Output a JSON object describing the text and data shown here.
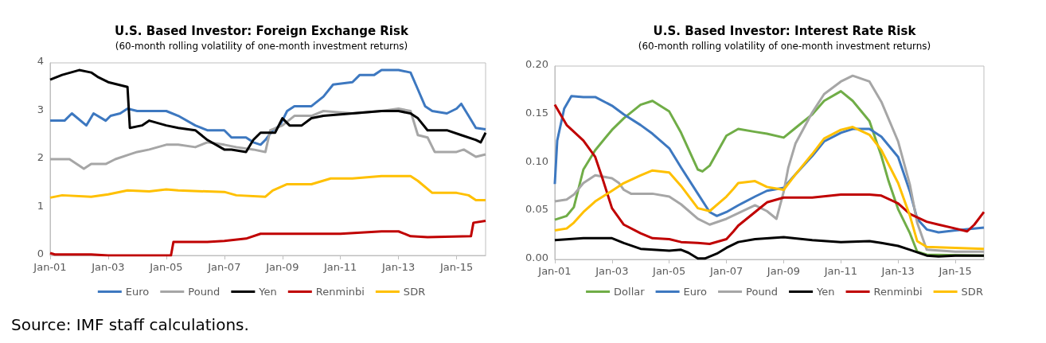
{
  "chart_data": [
    {
      "type": "line",
      "title": "U.S. Based Investor: Foreign Exchange Risk",
      "subtitle": "(60-month rolling volatility of one-month investment returns)",
      "xlim": [
        "2001-01",
        "2016-01"
      ],
      "xticks": [
        {
          "value": "2001-01",
          "label": "Jan-01"
        },
        {
          "value": "2003-01",
          "label": "Jan-03"
        },
        {
          "value": "2005-01",
          "label": "Jan-05"
        },
        {
          "value": "2007-01",
          "label": "Jan-07"
        },
        {
          "value": "2009-01",
          "label": "Jan-09"
        },
        {
          "value": "2011-01",
          "label": "Jan-11"
        },
        {
          "value": "2013-01",
          "label": "Jan-13"
        },
        {
          "value": "2015-01",
          "label": "Jan-15"
        }
      ],
      "ylim": [
        0,
        4
      ],
      "yticks": [
        0,
        1,
        2,
        3,
        4
      ],
      "grid": false,
      "legend": "bottom",
      "marker": "none",
      "annotations": [
        "Source: IMF staff calculations."
      ],
      "series": [
        {
          "name": "Euro",
          "color": "#3d78c0",
          "x": [
            "2001-01",
            "2001-07",
            "2001-10",
            "2002-04",
            "2002-07",
            "2002-12",
            "2003-02",
            "2003-06",
            "2003-09",
            "2004-01",
            "2005-01",
            "2005-06",
            "2006-01",
            "2006-06",
            "2007-01",
            "2007-04",
            "2007-10",
            "2008-01",
            "2008-04",
            "2008-06",
            "2008-09",
            "2008-12",
            "2009-03",
            "2009-06",
            "2010-01",
            "2010-06",
            "2010-10",
            "2011-06",
            "2011-09",
            "2012-03",
            "2012-06",
            "2013-01",
            "2013-06",
            "2013-09",
            "2013-12",
            "2014-03",
            "2014-09",
            "2015-01",
            "2015-03",
            "2015-06",
            "2015-09",
            "2016-01"
          ],
          "values": [
            2.8,
            2.8,
            2.95,
            2.7,
            2.95,
            2.8,
            2.9,
            2.95,
            3.05,
            3.0,
            3.0,
            2.9,
            2.7,
            2.6,
            2.6,
            2.45,
            2.45,
            2.35,
            2.3,
            2.4,
            2.6,
            2.7,
            3.0,
            3.1,
            3.1,
            3.3,
            3.55,
            3.6,
            3.75,
            3.75,
            3.85,
            3.85,
            3.8,
            3.45,
            3.1,
            3.0,
            2.95,
            3.05,
            3.15,
            2.9,
            2.65,
            2.62
          ]
        },
        {
          "name": "Pound",
          "color": "#a6a6a6",
          "x": [
            "2001-01",
            "2001-09",
            "2002-03",
            "2002-06",
            "2002-12",
            "2003-04",
            "2003-10",
            "2004-01",
            "2004-06",
            "2005-01",
            "2005-06",
            "2006-01",
            "2006-06",
            "2007-01",
            "2007-06",
            "2008-01",
            "2008-06",
            "2008-08",
            "2009-01",
            "2009-06",
            "2010-01",
            "2010-06",
            "2011-06",
            "2012-06",
            "2013-01",
            "2013-06",
            "2013-09",
            "2014-01",
            "2014-04",
            "2015-01",
            "2015-04",
            "2015-09",
            "2016-01"
          ],
          "values": [
            2.0,
            2.0,
            1.8,
            1.9,
            1.9,
            2.0,
            2.1,
            2.15,
            2.2,
            2.3,
            2.3,
            2.25,
            2.35,
            2.3,
            2.25,
            2.2,
            2.15,
            2.6,
            2.7,
            2.9,
            2.9,
            3.0,
            2.95,
            3.0,
            3.05,
            3.0,
            2.5,
            2.45,
            2.15,
            2.15,
            2.2,
            2.05,
            2.1
          ]
        },
        {
          "name": "Yen",
          "color": "#000000",
          "x": [
            "2001-01",
            "2001-06",
            "2002-01",
            "2002-06",
            "2002-09",
            "2003-01",
            "2003-09",
            "2003-10",
            "2004-03",
            "2004-06",
            "2005-01",
            "2005-06",
            "2006-01",
            "2006-06",
            "2007-01",
            "2007-04",
            "2007-10",
            "2008-01",
            "2008-04",
            "2008-10",
            "2009-01",
            "2009-04",
            "2009-09",
            "2010-01",
            "2010-06",
            "2011-06",
            "2012-06",
            "2013-01",
            "2013-06",
            "2013-09",
            "2014-01",
            "2014-09",
            "2015-03",
            "2015-09",
            "2015-11",
            "2016-01"
          ],
          "values": [
            3.65,
            3.75,
            3.85,
            3.8,
            3.7,
            3.6,
            3.5,
            2.65,
            2.7,
            2.8,
            2.7,
            2.65,
            2.6,
            2.4,
            2.2,
            2.2,
            2.15,
            2.4,
            2.55,
            2.55,
            2.85,
            2.7,
            2.7,
            2.85,
            2.9,
            2.95,
            3.0,
            3.0,
            2.95,
            2.85,
            2.6,
            2.6,
            2.5,
            2.4,
            2.35,
            2.55
          ]
        },
        {
          "name": "Renminbi",
          "color": "#c00000",
          "x": [
            "2001-01",
            "2001-03",
            "2002-06",
            "2003-01",
            "2005-03",
            "2005-04",
            "2006-06",
            "2007-01",
            "2007-10",
            "2008-04",
            "2009-01",
            "2010-06",
            "2011-01",
            "2012-06",
            "2013-01",
            "2013-06",
            "2014-01",
            "2015-07",
            "2015-08",
            "2016-01"
          ],
          "values": [
            0.05,
            0.02,
            0.02,
            0.0,
            0.0,
            0.28,
            0.28,
            0.3,
            0.35,
            0.45,
            0.45,
            0.45,
            0.45,
            0.5,
            0.5,
            0.4,
            0.38,
            0.4,
            0.68,
            0.72
          ]
        },
        {
          "name": "SDR",
          "color": "#ffc000",
          "x": [
            "2001-01",
            "2001-06",
            "2002-06",
            "2003-01",
            "2003-09",
            "2004-06",
            "2005-01",
            "2005-06",
            "2006-06",
            "2007-01",
            "2007-06",
            "2008-06",
            "2008-09",
            "2009-03",
            "2010-01",
            "2010-09",
            "2011-06",
            "2012-06",
            "2013-06",
            "2013-09",
            "2014-03",
            "2015-01",
            "2015-06",
            "2015-09",
            "2016-01"
          ],
          "values": [
            1.2,
            1.25,
            1.22,
            1.27,
            1.35,
            1.33,
            1.37,
            1.35,
            1.33,
            1.32,
            1.25,
            1.22,
            1.35,
            1.48,
            1.48,
            1.6,
            1.6,
            1.65,
            1.65,
            1.55,
            1.3,
            1.3,
            1.25,
            1.15,
            1.15
          ]
        }
      ]
    },
    {
      "type": "line",
      "title": "U.S. Based Investor: Interest Rate Risk",
      "subtitle": "(60-month rolling volatility of one-month investment returns)",
      "xlim": [
        "2001-01",
        "2016-01"
      ],
      "xticks": [
        {
          "value": "2001-01",
          "label": "Jan-01"
        },
        {
          "value": "2003-01",
          "label": "Jan-03"
        },
        {
          "value": "2005-01",
          "label": "Jan-05"
        },
        {
          "value": "2007-01",
          "label": "Jan-07"
        },
        {
          "value": "2009-01",
          "label": "Jan-09"
        },
        {
          "value": "2011-01",
          "label": "Jan-11"
        },
        {
          "value": "2013-01",
          "label": "Jan-13"
        },
        {
          "value": "2015-01",
          "label": "Jan-15"
        }
      ],
      "ylim": [
        0,
        0.2
      ],
      "yticks": [
        {
          "value": 0,
          "label": "0.00"
        },
        {
          "value": 0.05,
          "label": "0.05"
        },
        {
          "value": 0.1,
          "label": "0.10"
        },
        {
          "value": 0.15,
          "label": "0.15"
        },
        {
          "value": 0.2,
          "label": "0.20"
        }
      ],
      "grid": false,
      "legend": "bottom",
      "marker": "none",
      "series": [
        {
          "name": "Dollar",
          "color": "#70ad47",
          "x": [
            "2001-01",
            "2001-06",
            "2001-09",
            "2002-01",
            "2002-06",
            "2003-01",
            "2003-06",
            "2004-01",
            "2004-06",
            "2005-01",
            "2005-06",
            "2006-01",
            "2006-03",
            "2006-06",
            "2007-01",
            "2007-06",
            "2008-01",
            "2008-06",
            "2009-01",
            "2009-06",
            "2010-01",
            "2010-06",
            "2011-01",
            "2011-06",
            "2012-01",
            "2012-06",
            "2012-09",
            "2013-01",
            "2013-06",
            "2013-09",
            "2014-01",
            "2016-01"
          ],
          "values": [
            0.041,
            0.045,
            0.054,
            0.093,
            0.113,
            0.134,
            0.146,
            0.16,
            0.164,
            0.153,
            0.131,
            0.093,
            0.091,
            0.097,
            0.128,
            0.135,
            0.132,
            0.13,
            0.126,
            0.136,
            0.15,
            0.164,
            0.174,
            0.164,
            0.143,
            0.107,
            0.081,
            0.052,
            0.027,
            0.008,
            0.005,
            0.004
          ]
        },
        {
          "name": "Euro",
          "color": "#3d78c0",
          "x": [
            "2001-01",
            "2001-02",
            "2001-05",
            "2001-08",
            "2002-01",
            "2002-06",
            "2003-01",
            "2003-06",
            "2004-01",
            "2004-06",
            "2005-01",
            "2005-06",
            "2006-01",
            "2006-06",
            "2006-09",
            "2007-01",
            "2007-06",
            "2008-01",
            "2008-06",
            "2009-01",
            "2009-06",
            "2010-01",
            "2010-06",
            "2011-01",
            "2011-06",
            "2012-01",
            "2012-06",
            "2013-01",
            "2013-06",
            "2013-09",
            "2014-01",
            "2014-06",
            "2015-01",
            "2016-01"
          ],
          "values": [
            0.078,
            0.123,
            0.156,
            0.169,
            0.168,
            0.168,
            0.159,
            0.15,
            0.139,
            0.13,
            0.115,
            0.095,
            0.068,
            0.049,
            0.045,
            0.049,
            0.056,
            0.065,
            0.071,
            0.074,
            0.088,
            0.107,
            0.122,
            0.131,
            0.135,
            0.135,
            0.127,
            0.106,
            0.07,
            0.042,
            0.031,
            0.028,
            0.03,
            0.033
          ]
        },
        {
          "name": "Pound",
          "color": "#a6a6a6",
          "x": [
            "2001-01",
            "2001-06",
            "2001-09",
            "2002-01",
            "2002-06",
            "2003-01",
            "2003-04",
            "2003-06",
            "2003-09",
            "2004-06",
            "2005-01",
            "2005-06",
            "2006-01",
            "2006-06",
            "2007-01",
            "2008-01",
            "2008-06",
            "2008-10",
            "2009-01",
            "2009-03",
            "2009-06",
            "2010-01",
            "2010-06",
            "2011-01",
            "2011-06",
            "2012-01",
            "2012-06",
            "2013-01",
            "2013-06",
            "2013-09",
            "2014-01",
            "2015-01",
            "2016-01"
          ],
          "values": [
            0.06,
            0.062,
            0.067,
            0.079,
            0.087,
            0.084,
            0.079,
            0.072,
            0.068,
            0.068,
            0.065,
            0.057,
            0.042,
            0.036,
            0.042,
            0.056,
            0.05,
            0.042,
            0.07,
            0.095,
            0.12,
            0.152,
            0.171,
            0.184,
            0.19,
            0.184,
            0.163,
            0.122,
            0.077,
            0.038,
            0.01,
            0.008,
            0.008
          ]
        },
        {
          "name": "Yen",
          "color": "#000000",
          "x": [
            "2001-01",
            "2002-01",
            "2003-01",
            "2003-06",
            "2004-01",
            "2005-01",
            "2005-06",
            "2005-09",
            "2006-01",
            "2006-04",
            "2006-09",
            "2007-01",
            "2007-06",
            "2008-01",
            "2009-01",
            "2010-01",
            "2011-01",
            "2012-01",
            "2012-06",
            "2013-01",
            "2013-06",
            "2014-01",
            "2014-06",
            "2015-01",
            "2016-01"
          ],
          "values": [
            0.02,
            0.022,
            0.022,
            0.017,
            0.011,
            0.009,
            0.01,
            0.007,
            0.001,
            0.001,
            0.006,
            0.012,
            0.018,
            0.021,
            0.023,
            0.02,
            0.018,
            0.019,
            0.017,
            0.014,
            0.01,
            0.004,
            0.003,
            0.004,
            0.004
          ]
        },
        {
          "name": "Renminbi",
          "color": "#c00000",
          "x": [
            "2001-01",
            "2001-06",
            "2002-01",
            "2002-06",
            "2002-09",
            "2003-01",
            "2003-06",
            "2004-01",
            "2004-06",
            "2005-01",
            "2005-06",
            "2006-01",
            "2006-06",
            "2007-01",
            "2007-04",
            "2007-06",
            "2008-01",
            "2008-06",
            "2009-01",
            "2010-01",
            "2011-01",
            "2012-01",
            "2012-06",
            "2013-01",
            "2013-06",
            "2014-01",
            "2014-06",
            "2015-01",
            "2015-06",
            "2015-09",
            "2016-01"
          ],
          "values": [
            0.16,
            0.139,
            0.123,
            0.106,
            0.084,
            0.053,
            0.036,
            0.027,
            0.022,
            0.021,
            0.018,
            0.017,
            0.016,
            0.021,
            0.029,
            0.035,
            0.049,
            0.059,
            0.064,
            0.064,
            0.067,
            0.067,
            0.066,
            0.058,
            0.047,
            0.039,
            0.036,
            0.032,
            0.029,
            0.036,
            0.049
          ]
        },
        {
          "name": "SDR",
          "color": "#ffc000",
          "x": [
            "2001-01",
            "2001-06",
            "2001-09",
            "2002-01",
            "2002-06",
            "2003-01",
            "2003-06",
            "2004-01",
            "2004-06",
            "2005-01",
            "2005-06",
            "2006-01",
            "2006-06",
            "2007-01",
            "2007-04",
            "2007-06",
            "2008-01",
            "2008-06",
            "2009-01",
            "2009-06",
            "2010-01",
            "2010-06",
            "2011-01",
            "2011-06",
            "2012-01",
            "2012-06",
            "2013-01",
            "2013-06",
            "2013-09",
            "2014-01",
            "2015-01",
            "2016-01"
          ],
          "values": [
            0.03,
            0.032,
            0.038,
            0.049,
            0.06,
            0.071,
            0.079,
            0.087,
            0.092,
            0.09,
            0.076,
            0.053,
            0.05,
            0.065,
            0.073,
            0.079,
            0.081,
            0.075,
            0.072,
            0.088,
            0.109,
            0.125,
            0.134,
            0.137,
            0.129,
            0.113,
            0.079,
            0.045,
            0.019,
            0.013,
            0.012,
            0.011
          ]
        }
      ]
    }
  ]
}
